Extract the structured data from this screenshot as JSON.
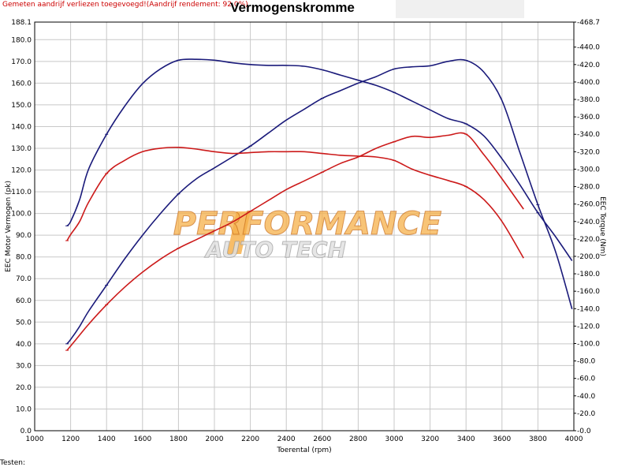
{
  "header": {
    "note": "Gemeten aandrijf verliezen toegevoegd!(Aandrijf rendement: 92.0%)",
    "title": "Vermogenskromme"
  },
  "footer": {
    "label": "Testen:"
  },
  "watermark": {
    "line1": "PERFORMANCE",
    "line2": "AUTO TECH"
  },
  "colors": {
    "tuned": "#1a1a7a",
    "stock": "#cc1a1a",
    "grid": "#c8c8c8",
    "wm_orange": "#f5b04a"
  },
  "chart_data": {
    "type": "line",
    "title": "Vermogenskromme",
    "xlabel": "Toerental (rpm)",
    "ylabel": "EEC Motor Vermogen (pk)",
    "y2label": "EEC Torque (Nm)",
    "xlim": [
      1000,
      4000
    ],
    "ylim": [
      0,
      188.1
    ],
    "y2lim": [
      0,
      468.7
    ],
    "grid": true,
    "x_ticks": [
      "1000",
      "1200",
      "1400",
      "1600",
      "1800",
      "2000",
      "2200",
      "2400",
      "2600",
      "2800",
      "3000",
      "3200",
      "3400",
      "3600",
      "3800",
      "4000"
    ],
    "y_ticks": [
      "0.0",
      "10.0",
      "20.0",
      "30.0",
      "40.0",
      "50.0",
      "60.0",
      "70.0",
      "80.0",
      "90.0",
      "100.0",
      "110.0",
      "120.0",
      "130.0",
      "140.0",
      "150.0",
      "160.0",
      "170.0",
      "180.0",
      "188.1"
    ],
    "y2_ticks": [
      "-0.0",
      "-20.0",
      "-40.0",
      "-60.0",
      "-80.0",
      "-100.0",
      "-120.0",
      "-140.0",
      "-160.0",
      "-180.0",
      "-200.0",
      "-220.0",
      "-240.0",
      "-260.0",
      "-280.0",
      "-300.0",
      "-320.0",
      "-340.0",
      "-360.0",
      "-380.0",
      "-400.0",
      "-420.0",
      "-440.0",
      "-468.7"
    ],
    "series": [
      {
        "key": "tuned_power",
        "axis": "left",
        "color": "#1a1a7a",
        "x": [
          1180,
          1200,
          1250,
          1300,
          1400,
          1500,
          1600,
          1700,
          1800,
          1900,
          2000,
          2100,
          2200,
          2300,
          2400,
          2500,
          2600,
          2700,
          2800,
          2900,
          3000,
          3100,
          3200,
          3300,
          3400,
          3500,
          3600,
          3700,
          3800,
          3900,
          3990
        ],
        "y": [
          40,
          42,
          48,
          55,
          67,
          79,
          90,
          100,
          109,
          116,
          121,
          126,
          131,
          137,
          143,
          148,
          153,
          156.5,
          160,
          163,
          166.5,
          167.5,
          168,
          170,
          170.5,
          165,
          152,
          128,
          104,
          82,
          56
        ]
      },
      {
        "key": "tuned_torque",
        "axis": "right",
        "color": "#1a1a7a",
        "x": [
          1180,
          1200,
          1250,
          1300,
          1400,
          1500,
          1600,
          1700,
          1800,
          1900,
          2000,
          2100,
          2200,
          2300,
          2400,
          2500,
          2600,
          2700,
          2800,
          2900,
          3000,
          3100,
          3200,
          3300,
          3400,
          3500,
          3600,
          3700,
          3800,
          3900,
          3990
        ],
        "y": [
          235,
          240,
          265,
          300,
          340,
          372,
          398,
          415,
          425,
          426,
          425,
          422,
          420,
          419,
          419,
          418,
          414,
          408,
          402,
          396,
          388,
          378,
          368,
          358,
          352,
          338,
          312,
          282,
          250,
          222,
          195
        ]
      },
      {
        "key": "stock_power",
        "axis": "left",
        "color": "#cc1a1a",
        "x": [
          1180,
          1200,
          1250,
          1300,
          1400,
          1500,
          1600,
          1700,
          1800,
          1900,
          2000,
          2100,
          2200,
          2300,
          2400,
          2500,
          2600,
          2700,
          2800,
          2900,
          3000,
          3100,
          3200,
          3300,
          3400,
          3500,
          3600,
          3720
        ],
        "y": [
          37,
          39,
          44,
          49,
          58,
          66,
          73,
          79,
          84,
          88,
          92,
          96,
          101,
          106,
          111,
          115,
          119,
          123,
          126,
          130,
          133,
          135.5,
          135,
          136,
          136.5,
          127,
          116,
          102
        ]
      },
      {
        "key": "stock_torque",
        "axis": "right",
        "color": "#cc1a1a",
        "x": [
          1180,
          1200,
          1250,
          1300,
          1400,
          1500,
          1600,
          1700,
          1800,
          1900,
          2000,
          2100,
          2200,
          2300,
          2400,
          2500,
          2600,
          2700,
          2800,
          2900,
          3000,
          3100,
          3200,
          3300,
          3400,
          3500,
          3600,
          3720
        ],
        "y": [
          218,
          225,
          240,
          262,
          295,
          310,
          320,
          324,
          325,
          323,
          320,
          318,
          319,
          320,
          320,
          320,
          318,
          316,
          315,
          314,
          310,
          300,
          293,
          287,
          280,
          265,
          240,
          198
        ]
      }
    ]
  }
}
